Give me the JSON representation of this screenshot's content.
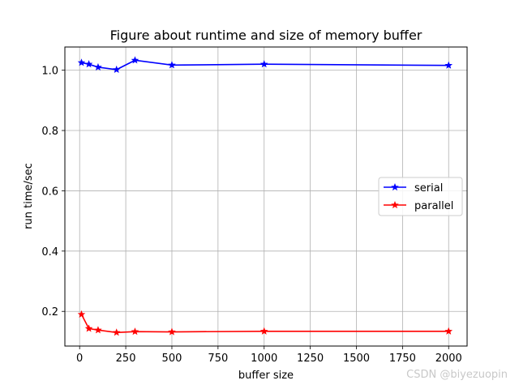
{
  "chart_data": {
    "type": "line",
    "title": "Figure about runtime and size of memory buffer",
    "xlabel": "buffer size",
    "ylabel": "run time/sec",
    "xlim": [
      -80,
      2100
    ],
    "ylim": [
      0.085,
      1.077
    ],
    "xticks": [
      0,
      250,
      500,
      750,
      1000,
      1250,
      1500,
      1750,
      2000
    ],
    "yticks": [
      0.2,
      0.4,
      0.6,
      0.8,
      1.0
    ],
    "ytick_labels": [
      "0.2",
      "0.4",
      "0.6",
      "0.8",
      "1.0"
    ],
    "grid": true,
    "legend_position": "center-right",
    "series": [
      {
        "name": "serial",
        "color": "#0000ff",
        "marker": "star",
        "x": [
          10,
          50,
          100,
          200,
          300,
          500,
          1000,
          2000
        ],
        "y": [
          1.025,
          1.02,
          1.01,
          1.002,
          1.033,
          1.017,
          1.02,
          1.016
        ]
      },
      {
        "name": "parallel",
        "color": "#ff0000",
        "marker": "star",
        "x": [
          10,
          50,
          100,
          200,
          300,
          500,
          1000,
          2000
        ],
        "y": [
          0.19,
          0.143,
          0.138,
          0.13,
          0.133,
          0.132,
          0.134,
          0.134
        ]
      }
    ]
  },
  "watermark": "CSDN @biyezuopin"
}
